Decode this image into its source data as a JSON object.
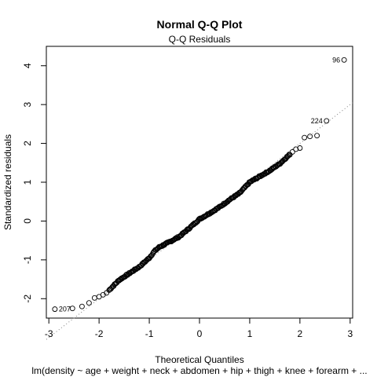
{
  "chart_data": {
    "type": "scatter",
    "title": "Normal Q-Q Plot",
    "subtitle": "Q-Q Residuals",
    "xlabel": "Theoretical Quantiles",
    "ylabel": "Standardized residuals",
    "caption": "lm(density ~ age + weight + neck + abdomen + hip + thigh + knee + forearm + ...",
    "xlim": [
      -3.05,
      3.05
    ],
    "ylim": [
      -2.5,
      4.5
    ],
    "x_ticks": [
      -3,
      -2,
      -1,
      0,
      1,
      2,
      3
    ],
    "x_tick_labels": [
      "-3",
      "-2",
      "-1",
      "0",
      "1",
      "2",
      "3"
    ],
    "y_ticks": [
      -2,
      -1,
      0,
      1,
      2,
      3,
      4
    ],
    "y_tick_labels": [
      "-2",
      "-1",
      "0",
      "1",
      "2",
      "3",
      "4"
    ],
    "grid": false,
    "reference_line": {
      "style": "dotted",
      "slope": 1.0,
      "intercept": 0.0
    },
    "n_points": 252,
    "labeled_points": [
      {
        "label": "96",
        "x": 2.88,
        "y": 4.15
      },
      {
        "label": "224",
        "x": 2.53,
        "y": 2.58
      },
      {
        "label": "207",
        "x": -2.88,
        "y": -2.27
      }
    ],
    "tail_points": [
      {
        "x": -2.88,
        "y": -2.27
      },
      {
        "x": -2.53,
        "y": -2.25
      },
      {
        "x": -2.34,
        "y": -2.2
      },
      {
        "x": -2.2,
        "y": -2.11
      },
      {
        "x": -2.09,
        "y": -1.98
      },
      {
        "x": -2.0,
        "y": -1.95
      },
      {
        "x": -1.92,
        "y": -1.9
      },
      {
        "x": -1.85,
        "y": -1.85
      },
      {
        "x": 1.85,
        "y": 1.78
      },
      {
        "x": 1.92,
        "y": 1.85
      },
      {
        "x": 2.0,
        "y": 1.88
      },
      {
        "x": 2.09,
        "y": 2.15
      },
      {
        "x": 2.2,
        "y": 2.18
      },
      {
        "x": 2.34,
        "y": 2.2
      },
      {
        "x": 2.53,
        "y": 2.58
      },
      {
        "x": 2.88,
        "y": 4.15
      }
    ],
    "body_profile": [
      [
        -1.8,
        -1.78
      ],
      [
        -1.6,
        -1.52
      ],
      [
        -1.4,
        -1.35
      ],
      [
        -1.2,
        -1.18
      ],
      [
        -1.0,
        -0.95
      ],
      [
        -0.9,
        -0.78
      ],
      [
        -0.8,
        -0.67
      ],
      [
        -0.6,
        -0.54
      ],
      [
        -0.4,
        -0.4
      ],
      [
        -0.2,
        -0.18
      ],
      [
        0.0,
        0.05
      ],
      [
        0.2,
        0.2
      ],
      [
        0.4,
        0.36
      ],
      [
        0.6,
        0.55
      ],
      [
        0.8,
        0.72
      ],
      [
        1.0,
        1.0
      ],
      [
        1.2,
        1.15
      ],
      [
        1.4,
        1.3
      ],
      [
        1.6,
        1.48
      ],
      [
        1.8,
        1.72
      ]
    ]
  }
}
